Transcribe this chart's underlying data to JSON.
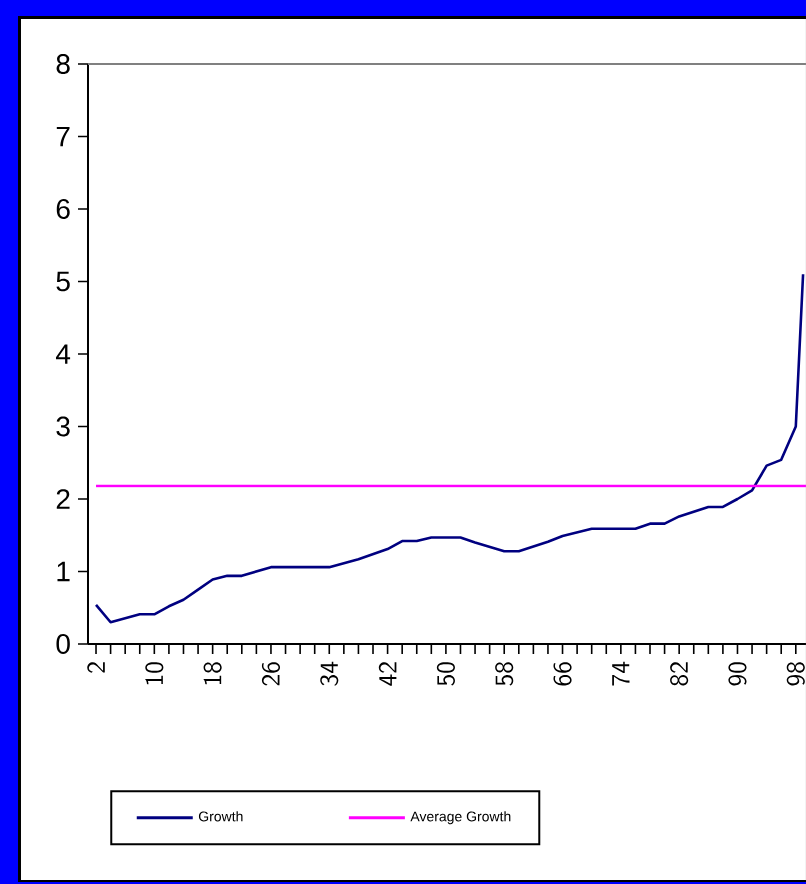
{
  "chart_data": {
    "type": "line",
    "xlim": [
      0.9,
      99.4
    ],
    "ylim": [
      0,
      8
    ],
    "yticks": [
      0,
      1,
      2,
      3,
      4,
      5,
      6,
      7,
      8
    ],
    "xticks": [
      2,
      {
        "value": 4,
        "label": null
      },
      {
        "value": 6,
        "label": null
      },
      {
        "value": 8,
        "label": null
      },
      10,
      {
        "value": 12,
        "label": null
      },
      {
        "value": 14,
        "label": null
      },
      {
        "value": 16,
        "label": null
      },
      18,
      {
        "value": 20,
        "label": null
      },
      {
        "value": 22,
        "label": null
      },
      {
        "value": 24,
        "label": null
      },
      26,
      {
        "value": 28,
        "label": null
      },
      {
        "value": 30,
        "label": null
      },
      {
        "value": 32,
        "label": null
      },
      34,
      {
        "value": 36,
        "label": null
      },
      {
        "value": 38,
        "label": null
      },
      {
        "value": 40,
        "label": null
      },
      42,
      {
        "value": 44,
        "label": null
      },
      {
        "value": 46,
        "label": null
      },
      {
        "value": 48,
        "label": null
      },
      50,
      {
        "value": 52,
        "label": null
      },
      {
        "value": 54,
        "label": null
      },
      {
        "value": 56,
        "label": null
      },
      58,
      {
        "value": 60,
        "label": null
      },
      {
        "value": 62,
        "label": null
      },
      {
        "value": 64,
        "label": null
      },
      66,
      {
        "value": 68,
        "label": null
      },
      {
        "value": 70,
        "label": null
      },
      {
        "value": 72,
        "label": null
      },
      74,
      {
        "value": 76,
        "label": null
      },
      {
        "value": 78,
        "label": null
      },
      {
        "value": 80,
        "label": null
      },
      82,
      {
        "value": 84,
        "label": null
      },
      {
        "value": 86,
        "label": null
      },
      {
        "value": 88,
        "label": null
      },
      90,
      {
        "value": 92,
        "label": null
      },
      {
        "value": 94,
        "label": null
      },
      {
        "value": 96,
        "label": null
      },
      98
    ],
    "legend": "bottom",
    "series": [
      {
        "name": "Growth",
        "color": "#000080",
        "x": [
          2,
          4,
          8,
          10,
          12,
          14,
          16,
          18,
          20,
          22,
          26,
          34,
          38,
          42,
          44,
          46,
          48,
          52,
          54,
          58,
          60,
          64,
          66,
          70,
          72,
          76,
          78,
          80,
          82,
          86,
          88,
          90,
          92,
          94,
          96,
          98,
          99
        ],
        "values": [
          0.54,
          0.3,
          0.41,
          0.41,
          0.52,
          0.61,
          0.75,
          0.89,
          0.94,
          0.94,
          1.06,
          1.06,
          1.17,
          1.31,
          1.42,
          1.42,
          1.47,
          1.47,
          1.4,
          1.28,
          1.28,
          1.41,
          1.49,
          1.59,
          1.59,
          1.59,
          1.66,
          1.66,
          1.76,
          1.89,
          1.89,
          2.0,
          2.12,
          2.46,
          2.54,
          3.0,
          5.1
        ]
      },
      {
        "name": "Average Growth",
        "color": "#ff00ff",
        "x": [
          2,
          99.4
        ],
        "values": [
          2.18,
          2.18
        ]
      }
    ]
  }
}
